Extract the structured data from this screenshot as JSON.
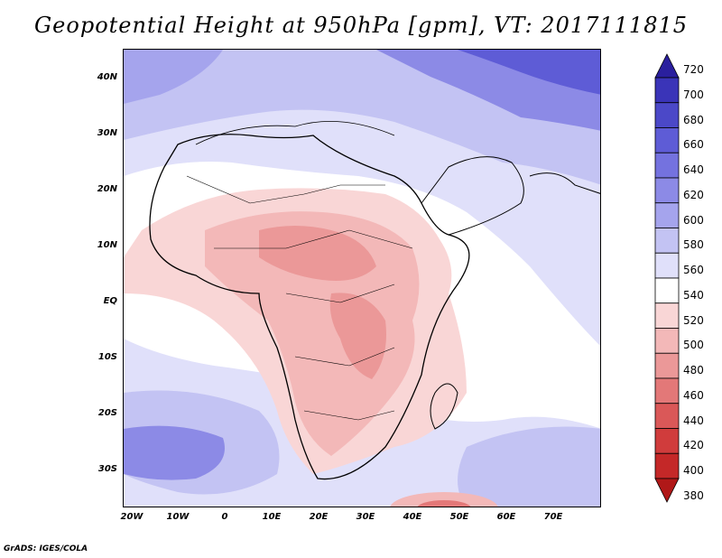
{
  "title": "Geopotential Height at 950hPa [gpm], VT: 2017111815",
  "credit": "GrADS: IGES/COLA",
  "map": {
    "lat_ticks": [
      "40N",
      "30N",
      "20N",
      "10N",
      "EQ",
      "10S",
      "20S",
      "30S"
    ],
    "lon_ticks": [
      "20W",
      "10W",
      "0",
      "10E",
      "20E",
      "30E",
      "40E",
      "50E",
      "60E",
      "70E"
    ]
  },
  "colorbar": {
    "levels": [
      "720",
      "700",
      "680",
      "660",
      "640",
      "620",
      "600",
      "580",
      "560",
      "540",
      "520",
      "500",
      "480",
      "460",
      "440",
      "420",
      "400",
      "380"
    ],
    "colors": [
      "#2a1f9e",
      "#3a34b8",
      "#4b48c8",
      "#5e5cd6",
      "#7472df",
      "#8c8ae6",
      "#a5a4ed",
      "#c3c3f3",
      "#e0e0fa",
      "#ffffff",
      "#f9d6d6",
      "#f3b8b8",
      "#eb9898",
      "#e37878",
      "#da5858",
      "#d03c3c",
      "#c42828",
      "#b01818"
    ]
  }
}
